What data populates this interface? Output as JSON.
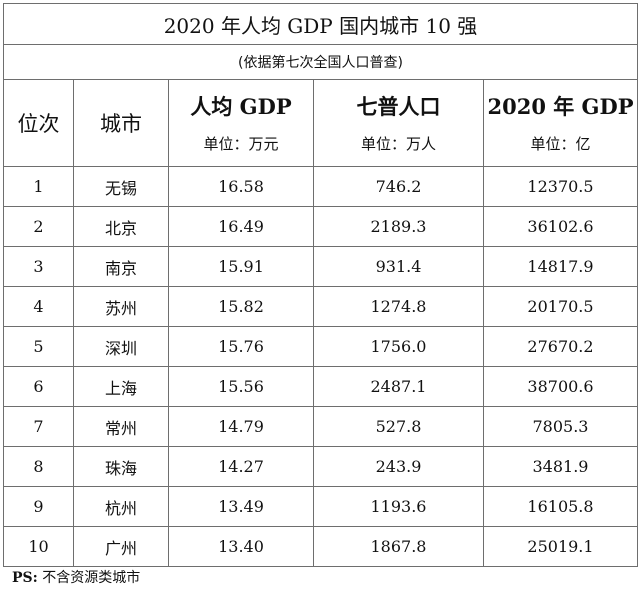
{
  "title": "2020 年人均 GDP 国内城市 10 强",
  "subtitle": "(依据第七次全国人口普查)",
  "headers": {
    "rank": "位次",
    "city": "城市",
    "gdp_per_capita": {
      "label": "人均 GDP",
      "unit": "单位：万元"
    },
    "population": {
      "label": "七普人口",
      "unit": "单位：万人"
    },
    "gdp_total": {
      "label": "2020 年 GDP",
      "unit": "单位：亿"
    }
  },
  "rows": [
    {
      "rank": "1",
      "city": "无锡",
      "gdp_per_capita": "16.58",
      "population": "746.2",
      "gdp_total": "12370.5"
    },
    {
      "rank": "2",
      "city": "北京",
      "gdp_per_capita": "16.49",
      "population": "2189.3",
      "gdp_total": "36102.6"
    },
    {
      "rank": "3",
      "city": "南京",
      "gdp_per_capita": "15.91",
      "population": "931.4",
      "gdp_total": "14817.9"
    },
    {
      "rank": "4",
      "city": "苏州",
      "gdp_per_capita": "15.82",
      "population": "1274.8",
      "gdp_total": "20170.5"
    },
    {
      "rank": "5",
      "city": "深圳",
      "gdp_per_capita": "15.76",
      "population": "1756.0",
      "gdp_total": "27670.2"
    },
    {
      "rank": "6",
      "city": "上海",
      "gdp_per_capita": "15.56",
      "population": "2487.1",
      "gdp_total": "38700.6"
    },
    {
      "rank": "7",
      "city": "常州",
      "gdp_per_capita": "14.79",
      "population": "527.8",
      "gdp_total": "7805.3"
    },
    {
      "rank": "8",
      "city": "珠海",
      "gdp_per_capita": "14.27",
      "population": "243.9",
      "gdp_total": "3481.9"
    },
    {
      "rank": "9",
      "city": "杭州",
      "gdp_per_capita": "13.49",
      "population": "1193.6",
      "gdp_total": "16105.8"
    },
    {
      "rank": "10",
      "city": "广州",
      "gdp_per_capita": "13.40",
      "population": "1867.8",
      "gdp_total": "25019.1"
    }
  ],
  "note": {
    "prefix": "PS:",
    "text": "不含资源类城市"
  }
}
